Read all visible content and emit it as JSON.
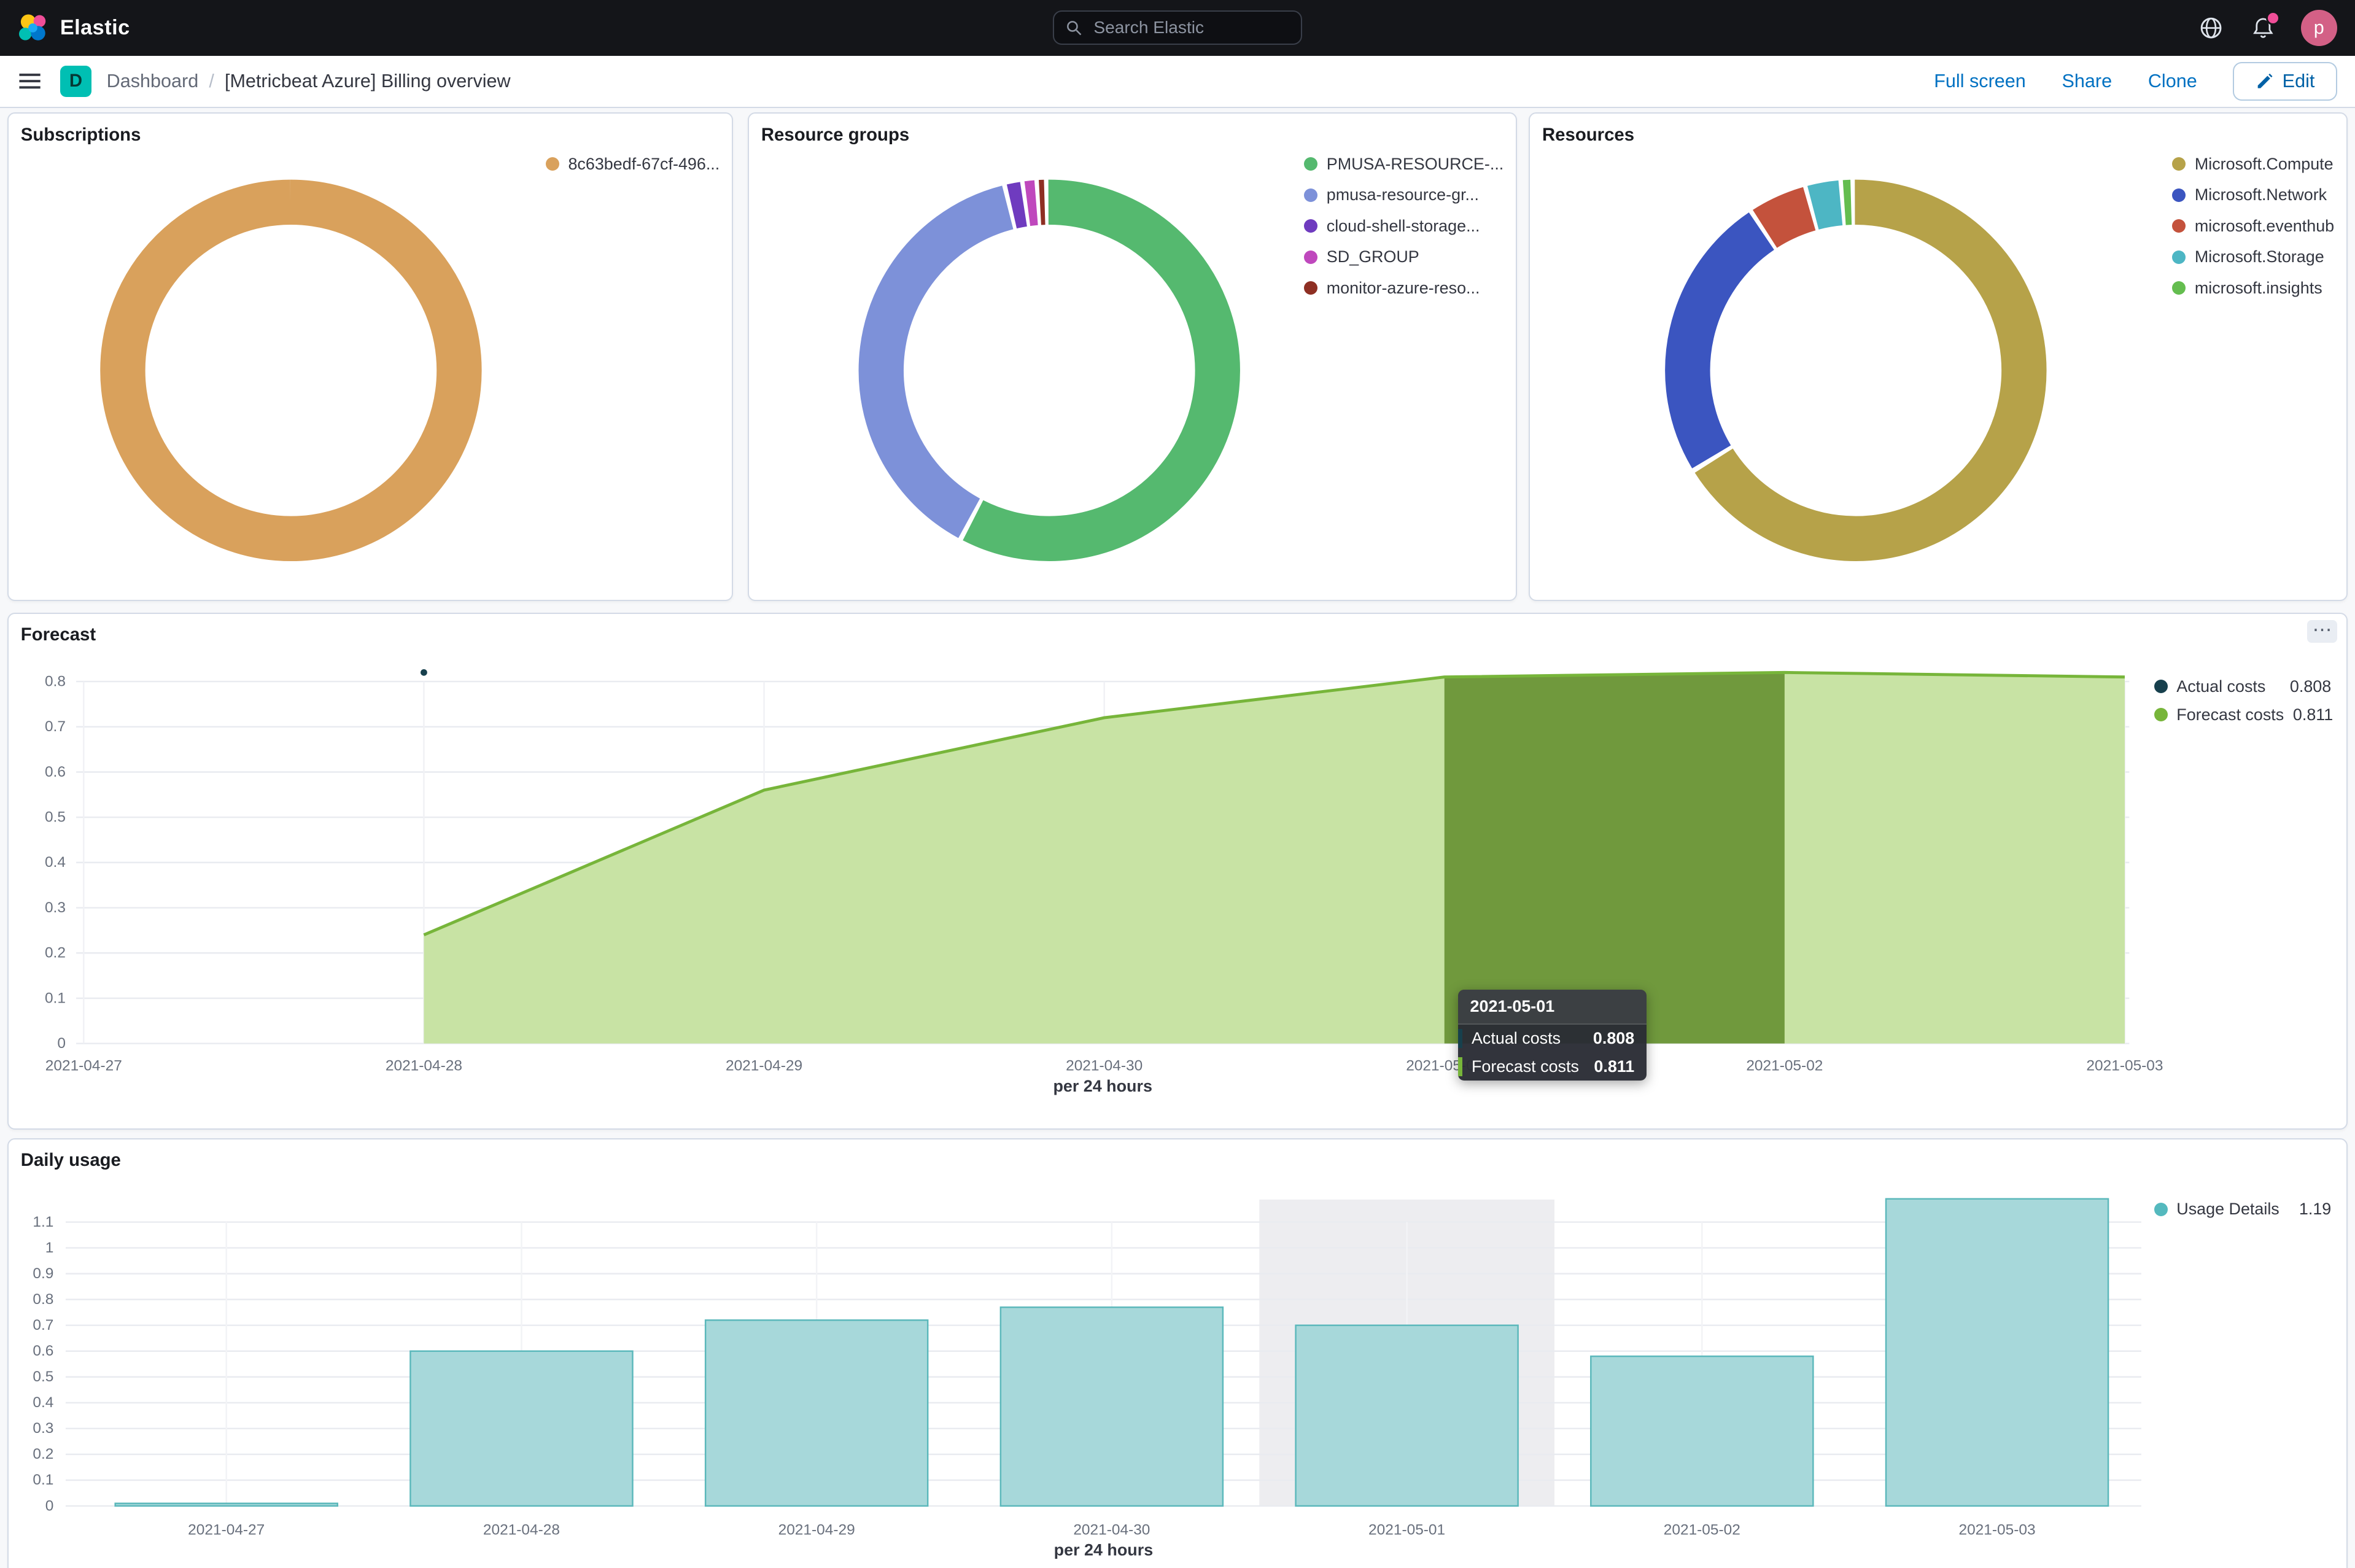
{
  "topnav": {
    "brand": "Elastic",
    "search_placeholder": "Search Elastic",
    "avatar_initial": "p"
  },
  "toolbar": {
    "space_badge": "D",
    "breadcrumb": {
      "root": "Dashboard",
      "separator": "/",
      "current": "[Metricbeat Azure] Billing overview"
    },
    "actions": {
      "full_screen": "Full screen",
      "share": "Share",
      "clone": "Clone",
      "edit": "Edit"
    },
    "panel_options_glyph": "⋯"
  },
  "panels": {
    "subscriptions": {
      "title": "Subscriptions"
    },
    "resource_groups": {
      "title": "Resource groups"
    },
    "resources": {
      "title": "Resources"
    },
    "forecast": {
      "title": "Forecast",
      "tooltip": {
        "header": "2021-05-01",
        "rows": [
          {
            "label": "Actual costs",
            "value": "0.808"
          },
          {
            "label": "Forecast costs",
            "value": "0.811"
          }
        ]
      }
    },
    "daily_usage": {
      "title": "Daily usage"
    }
  },
  "chart_data": [
    {
      "type": "pie",
      "title": "Subscriptions",
      "donut": true,
      "labels": [
        "8c63bedf-67cf-496..."
      ],
      "values": [
        100
      ],
      "unit": "percent",
      "colors": [
        "#d9a15c"
      ],
      "legend_position": "top-right"
    },
    {
      "type": "pie",
      "title": "Resource groups",
      "donut": true,
      "labels": [
        "PMUSA-RESOURCE-...",
        "pmusa-resource-gr...",
        "cloud-shell-storage...",
        "SD_GROUP",
        "monitor-azure-reso..."
      ],
      "values": [
        58,
        38.5,
        1.5,
        1.2,
        0.8
      ],
      "unit": "percent",
      "colors": [
        "#55b96f",
        "#7d91d9",
        "#6f3bbf",
        "#bf48bd",
        "#8e2f23"
      ],
      "legend_position": "top-right"
    },
    {
      "type": "pie",
      "title": "Resources",
      "donut": true,
      "labels": [
        "Microsoft.Compute",
        "Microsoft.Network",
        "microsoft.eventhub",
        "Microsoft.Storage",
        "microsoft.insights"
      ],
      "values": [
        66.5,
        24.5,
        5,
        3,
        1
      ],
      "unit": "percent",
      "colors": [
        "#b6a249",
        "#3b55c0",
        "#c4523c",
        "#4db6c4",
        "#64bd4f"
      ],
      "legend_position": "top-right"
    },
    {
      "type": "area",
      "title": "Forecast",
      "x": [
        "2021-04-27",
        "2021-04-28",
        "2021-04-29",
        "2021-04-30",
        "2021-05-01",
        "2021-05-02",
        "2021-05-03"
      ],
      "series": [
        {
          "name": "Forecast costs",
          "start_index": 1,
          "values": [
            0.24,
            0.56,
            0.72,
            0.81,
            0.82,
            0.81
          ],
          "color": "#77b53a",
          "fill": "#c8e3a4"
        },
        {
          "name": "Actual costs",
          "points": [
            {
              "x": "2021-04-28",
              "y": 0.82
            }
          ],
          "color": "#17404d"
        }
      ],
      "highlight": {
        "x_from": "2021-05-01",
        "x_to": "2021-05-02",
        "fill": "#70993d"
      },
      "ylim": [
        0,
        0.8
      ],
      "ytick_step": 0.1,
      "grid": true,
      "xlabel": "per 24 hours",
      "legend_position": "right",
      "legend": [
        {
          "label": "Actual costs",
          "value": "0.808",
          "color": "#17404d"
        },
        {
          "label": "Forecast costs",
          "value": "0.811",
          "color": "#77b53a"
        }
      ]
    },
    {
      "type": "bar",
      "title": "Daily usage",
      "categories": [
        "2021-04-27",
        "2021-04-28",
        "2021-04-29",
        "2021-04-30",
        "2021-05-01",
        "2021-05-02",
        "2021-05-03"
      ],
      "values": [
        0.01,
        0.6,
        0.72,
        0.77,
        0.7,
        0.58,
        1.19
      ],
      "ylim": [
        0,
        1.1
      ],
      "ytick_step": 0.1,
      "grid": true,
      "xlabel": "per 24 hours",
      "bar_fill": "#a7d8da",
      "bar_stroke": "#5bb8bb",
      "highlight_index": 4,
      "highlight_fill": "#ededf0",
      "legend_position": "top-right",
      "legend": [
        {
          "label": "Usage Details",
          "value": "1.19",
          "color": "#54b9be"
        }
      ]
    }
  ]
}
